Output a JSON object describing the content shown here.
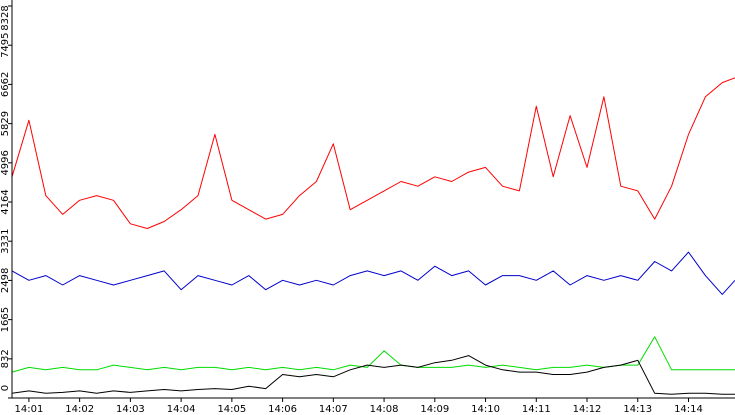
{
  "chart_data": {
    "type": "line",
    "title": "",
    "xlabel": "",
    "ylabel": "",
    "ylim": [
      0,
      8328
    ],
    "xlim": [
      "14:00:40",
      "14:14:55"
    ],
    "grid": false,
    "legend": "none",
    "y_ticks": [
      "0",
      "832",
      "1665",
      "2498",
      "3331",
      "4164",
      "4996",
      "5829",
      "6662",
      "7495",
      "8328"
    ],
    "x_ticks": [
      "14:01",
      "14:02",
      "14:03",
      "14:04",
      "14:05",
      "14:06",
      "14:07",
      "14:08",
      "14:09",
      "14:10",
      "14:11",
      "14:12",
      "14:13",
      "14:14"
    ],
    "x": [
      "14:00:40",
      "14:01:00",
      "14:01:20",
      "14:01:40",
      "14:02:00",
      "14:02:20",
      "14:02:40",
      "14:03:00",
      "14:03:20",
      "14:03:40",
      "14:04:00",
      "14:04:20",
      "14:04:40",
      "14:05:00",
      "14:05:20",
      "14:05:40",
      "14:06:00",
      "14:06:20",
      "14:06:40",
      "14:07:00",
      "14:07:20",
      "14:07:40",
      "14:08:00",
      "14:08:20",
      "14:08:40",
      "14:09:00",
      "14:09:20",
      "14:09:40",
      "14:10:00",
      "14:10:20",
      "14:10:40",
      "14:11:00",
      "14:11:20",
      "14:11:40",
      "14:12:00",
      "14:12:20",
      "14:12:40",
      "14:13:00",
      "14:13:20",
      "14:13:40",
      "14:14:00",
      "14:14:20",
      "14:14:40",
      "14:14:55"
    ],
    "series": [
      {
        "color": "#ff0000",
        "values": [
          4700,
          5900,
          4300,
          3900,
          4200,
          4300,
          4200,
          3700,
          3600,
          3750,
          4000,
          4300,
          5600,
          4200,
          4000,
          3800,
          3900,
          4300,
          4600,
          5400,
          4000,
          4200,
          4400,
          4600,
          4500,
          4700,
          4600,
          4800,
          4900,
          4500,
          4400,
          6200,
          4700,
          6000,
          4900,
          6400,
          4500,
          4400,
          3800,
          4500,
          5600,
          6400,
          6700,
          6800
        ]
      },
      {
        "color": "#0000cc",
        "values": [
          2700,
          2500,
          2600,
          2400,
          2600,
          2500,
          2400,
          2500,
          2600,
          2700,
          2300,
          2600,
          2500,
          2400,
          2600,
          2300,
          2500,
          2400,
          2500,
          2400,
          2600,
          2700,
          2600,
          2700,
          2500,
          2800,
          2600,
          2700,
          2400,
          2600,
          2600,
          2500,
          2700,
          2400,
          2600,
          2500,
          2600,
          2500,
          2900,
          2700,
          3100,
          2600,
          2200,
          2500
        ]
      },
      {
        "color": "#00dd00",
        "values": [
          550,
          650,
          600,
          650,
          600,
          600,
          700,
          650,
          600,
          650,
          600,
          650,
          650,
          600,
          650,
          600,
          650,
          600,
          650,
          600,
          700,
          650,
          1000,
          700,
          650,
          650,
          650,
          700,
          650,
          700,
          650,
          600,
          650,
          650,
          700,
          650,
          700,
          700,
          1300,
          600,
          600,
          600,
          600,
          600
        ]
      },
      {
        "color": "#000000",
        "values": [
          100,
          150,
          100,
          120,
          150,
          100,
          150,
          120,
          150,
          180,
          150,
          180,
          200,
          180,
          250,
          200,
          500,
          450,
          500,
          450,
          600,
          700,
          650,
          700,
          650,
          750,
          800,
          900,
          700,
          600,
          550,
          550,
          500,
          500,
          550,
          650,
          700,
          800,
          100,
          80,
          100,
          100,
          80,
          80
        ]
      }
    ]
  }
}
